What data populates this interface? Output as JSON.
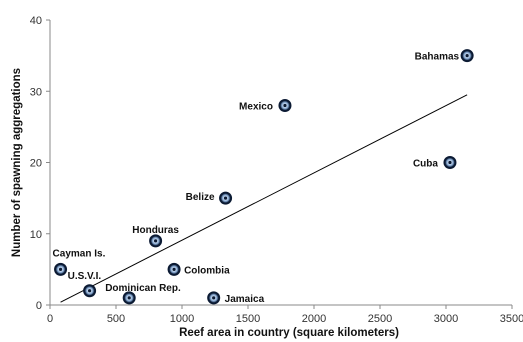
{
  "chart_data": {
    "type": "scatter",
    "title": "",
    "xlabel": "Reef area in country (square kilometers)",
    "ylabel": "Number of spawning aggregations",
    "xlim": [
      0,
      3500
    ],
    "ylim": [
      0,
      40
    ],
    "xticks": [
      0,
      500,
      1000,
      1500,
      2000,
      2500,
      3000,
      3500
    ],
    "yticks": [
      0,
      10,
      20,
      30,
      40
    ],
    "grid": false,
    "points": [
      {
        "label": "Bahamas",
        "x": 3160,
        "y": 35
      },
      {
        "label": "Mexico",
        "x": 1780,
        "y": 28
      },
      {
        "label": "Cuba",
        "x": 3030,
        "y": 20
      },
      {
        "label": "Belize",
        "x": 1330,
        "y": 15
      },
      {
        "label": "Honduras",
        "x": 800,
        "y": 9
      },
      {
        "label": "Cayman Is.",
        "x": 80,
        "y": 5
      },
      {
        "label": "Colombia",
        "x": 940,
        "y": 5
      },
      {
        "label": "U.S.V.I.",
        "x": 300,
        "y": 2
      },
      {
        "label": "Dominican Rep.",
        "x": 600,
        "y": 1
      },
      {
        "label": "Jamaica",
        "x": 1240,
        "y": 1
      }
    ],
    "trendline": {
      "type": "linear",
      "from": {
        "x": 80,
        "y": 0.4
      },
      "to": {
        "x": 3160,
        "y": 29.5
      }
    },
    "colors": {
      "marker_fill": "#0b1a33",
      "marker_glow": "#a9c4e6",
      "line": "#000000",
      "axis": "#888888"
    }
  }
}
